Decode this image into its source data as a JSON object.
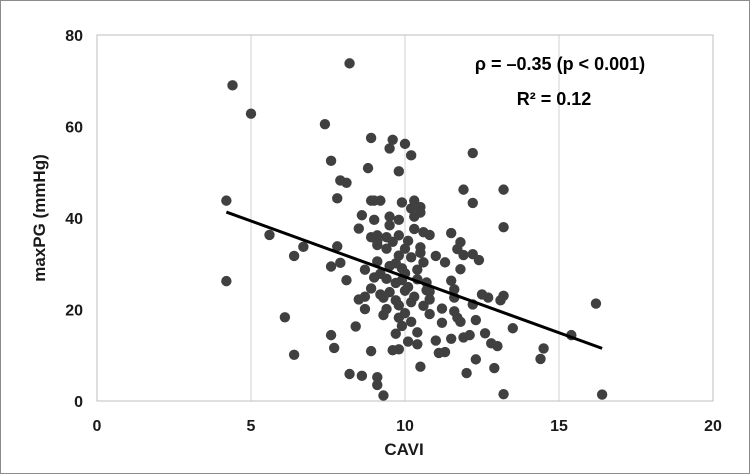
{
  "chart_data": {
    "type": "scatter",
    "title": "",
    "xlabel": "CAVI",
    "ylabel": "maxPG (mmHg)",
    "xlim": [
      0,
      20
    ],
    "ylim": [
      0,
      80
    ],
    "xticks": [
      "0",
      "5",
      "10",
      "15",
      "20"
    ],
    "yticks": [
      "0",
      "20",
      "40",
      "60",
      "80"
    ],
    "grid": "vertical",
    "annotations": {
      "rho": "ρ = –0.35 (p < 0.001)",
      "r2": "R² = 0.12"
    },
    "trendline": {
      "x": [
        4.2,
        16.4
      ],
      "y": [
        41.3,
        11.5
      ]
    },
    "colors": {
      "points": "#404040",
      "line": "#000000",
      "grid": "#d0d0d0"
    },
    "points": [
      [
        4.2,
        43.8
      ],
      [
        4.2,
        26.2
      ],
      [
        4.4,
        69.0
      ],
      [
        5.0,
        62.8
      ],
      [
        5.6,
        36.3
      ],
      [
        6.1,
        18.3
      ],
      [
        6.4,
        31.7
      ],
      [
        6.4,
        10.1
      ],
      [
        6.7,
        33.7
      ],
      [
        7.4,
        60.5
      ],
      [
        7.6,
        52.5
      ],
      [
        7.6,
        29.4
      ],
      [
        7.6,
        14.4
      ],
      [
        7.7,
        11.6
      ],
      [
        7.8,
        44.3
      ],
      [
        7.8,
        33.8
      ],
      [
        7.9,
        30.2
      ],
      [
        7.9,
        48.2
      ],
      [
        8.1,
        47.7
      ],
      [
        8.1,
        26.4
      ],
      [
        8.2,
        73.8
      ],
      [
        8.2,
        5.9
      ],
      [
        8.4,
        16.3
      ],
      [
        8.5,
        22.2
      ],
      [
        8.5,
        37.7
      ],
      [
        8.6,
        40.6
      ],
      [
        8.6,
        5.5
      ],
      [
        8.7,
        28.7
      ],
      [
        8.7,
        22.8
      ],
      [
        8.7,
        20.1
      ],
      [
        8.8,
        50.9
      ],
      [
        8.9,
        57.5
      ],
      [
        8.9,
        43.8
      ],
      [
        8.9,
        35.8
      ],
      [
        8.9,
        24.6
      ],
      [
        8.9,
        10.9
      ],
      [
        9.0,
        27.0
      ],
      [
        9.0,
        43.8
      ],
      [
        9.0,
        39.6
      ],
      [
        9.1,
        36.2
      ],
      [
        9.1,
        34.9
      ],
      [
        9.1,
        34.1
      ],
      [
        9.1,
        30.5
      ],
      [
        9.1,
        5.2
      ],
      [
        9.1,
        3.5
      ],
      [
        9.2,
        43.8
      ],
      [
        9.2,
        27.8
      ],
      [
        9.2,
        23.3
      ],
      [
        9.3,
        22.6
      ],
      [
        9.3,
        18.8
      ],
      [
        9.3,
        1.2
      ],
      [
        9.4,
        35.8
      ],
      [
        9.4,
        33.3
      ],
      [
        9.4,
        26.7
      ],
      [
        9.4,
        20.1
      ],
      [
        9.5,
        55.2
      ],
      [
        9.5,
        40.3
      ],
      [
        9.5,
        38.4
      ],
      [
        9.5,
        29.5
      ],
      [
        9.5,
        23.8
      ],
      [
        9.6,
        57.1
      ],
      [
        9.6,
        34.8
      ],
      [
        9.6,
        11.1
      ],
      [
        9.7,
        30.1
      ],
      [
        9.7,
        25.8
      ],
      [
        9.7,
        22.0
      ],
      [
        9.7,
        14.7
      ],
      [
        9.8,
        50.2
      ],
      [
        9.8,
        39.6
      ],
      [
        9.8,
        36.2
      ],
      [
        9.8,
        31.8
      ],
      [
        9.8,
        20.9
      ],
      [
        9.8,
        18.2
      ],
      [
        9.8,
        11.3
      ],
      [
        9.9,
        43.4
      ],
      [
        9.9,
        29.0
      ],
      [
        9.9,
        26.4
      ],
      [
        9.9,
        16.4
      ],
      [
        10.0,
        56.2
      ],
      [
        10.0,
        33.3
      ],
      [
        10.0,
        27.9
      ],
      [
        10.0,
        24.1
      ],
      [
        10.0,
        19.2
      ],
      [
        10.1,
        35.0
      ],
      [
        10.1,
        24.9
      ],
      [
        10.1,
        13.0
      ],
      [
        10.2,
        53.7
      ],
      [
        10.2,
        42.1
      ],
      [
        10.2,
        31.4
      ],
      [
        10.2,
        21.6
      ],
      [
        10.2,
        17.3
      ],
      [
        10.3,
        43.8
      ],
      [
        10.3,
        40.3
      ],
      [
        10.3,
        37.6
      ],
      [
        10.3,
        22.8
      ],
      [
        10.4,
        28.7
      ],
      [
        10.4,
        26.6
      ],
      [
        10.4,
        15.0
      ],
      [
        10.4,
        12.4
      ],
      [
        10.5,
        42.4
      ],
      [
        10.5,
        41.2
      ],
      [
        10.5,
        33.6
      ],
      [
        10.5,
        32.4
      ],
      [
        10.5,
        7.5
      ],
      [
        10.6,
        36.9
      ],
      [
        10.6,
        30.3
      ],
      [
        10.6,
        20.8
      ],
      [
        10.7,
        25.9
      ],
      [
        10.7,
        24.2
      ],
      [
        10.8,
        36.3
      ],
      [
        10.8,
        23.9
      ],
      [
        10.8,
        22.2
      ],
      [
        10.8,
        19.0
      ],
      [
        11.0,
        31.7
      ],
      [
        11.0,
        13.2
      ],
      [
        11.1,
        10.5
      ],
      [
        11.2,
        20.2
      ],
      [
        11.2,
        17.1
      ],
      [
        11.3,
        10.7
      ],
      [
        11.3,
        30.3
      ],
      [
        11.5,
        36.7
      ],
      [
        11.5,
        26.3
      ],
      [
        11.5,
        13.6
      ],
      [
        11.6,
        24.4
      ],
      [
        11.6,
        22.6
      ],
      [
        11.6,
        19.6
      ],
      [
        11.7,
        33.2
      ],
      [
        11.7,
        18.2
      ],
      [
        11.8,
        34.7
      ],
      [
        11.8,
        28.8
      ],
      [
        11.8,
        17.3
      ],
      [
        11.9,
        46.2
      ],
      [
        11.9,
        31.9
      ],
      [
        11.9,
        13.9
      ],
      [
        12.0,
        6.1
      ],
      [
        12.1,
        14.4
      ],
      [
        12.2,
        54.2
      ],
      [
        12.2,
        43.3
      ],
      [
        12.2,
        32.1
      ],
      [
        12.2,
        21.1
      ],
      [
        12.3,
        17.7
      ],
      [
        12.3,
        9.1
      ],
      [
        12.4,
        30.8
      ],
      [
        12.5,
        23.3
      ],
      [
        12.6,
        14.8
      ],
      [
        12.7,
        22.6
      ],
      [
        12.8,
        12.6
      ],
      [
        12.9,
        7.2
      ],
      [
        13.0,
        12.0
      ],
      [
        13.1,
        22.0
      ],
      [
        13.2,
        46.2
      ],
      [
        13.2,
        38.0
      ],
      [
        13.2,
        23.0
      ],
      [
        13.2,
        1.5
      ],
      [
        13.5,
        15.9
      ],
      [
        14.4,
        9.2
      ],
      [
        14.5,
        11.5
      ],
      [
        15.4,
        14.4
      ],
      [
        16.2,
        21.3
      ],
      [
        16.4,
        1.4
      ]
    ]
  }
}
